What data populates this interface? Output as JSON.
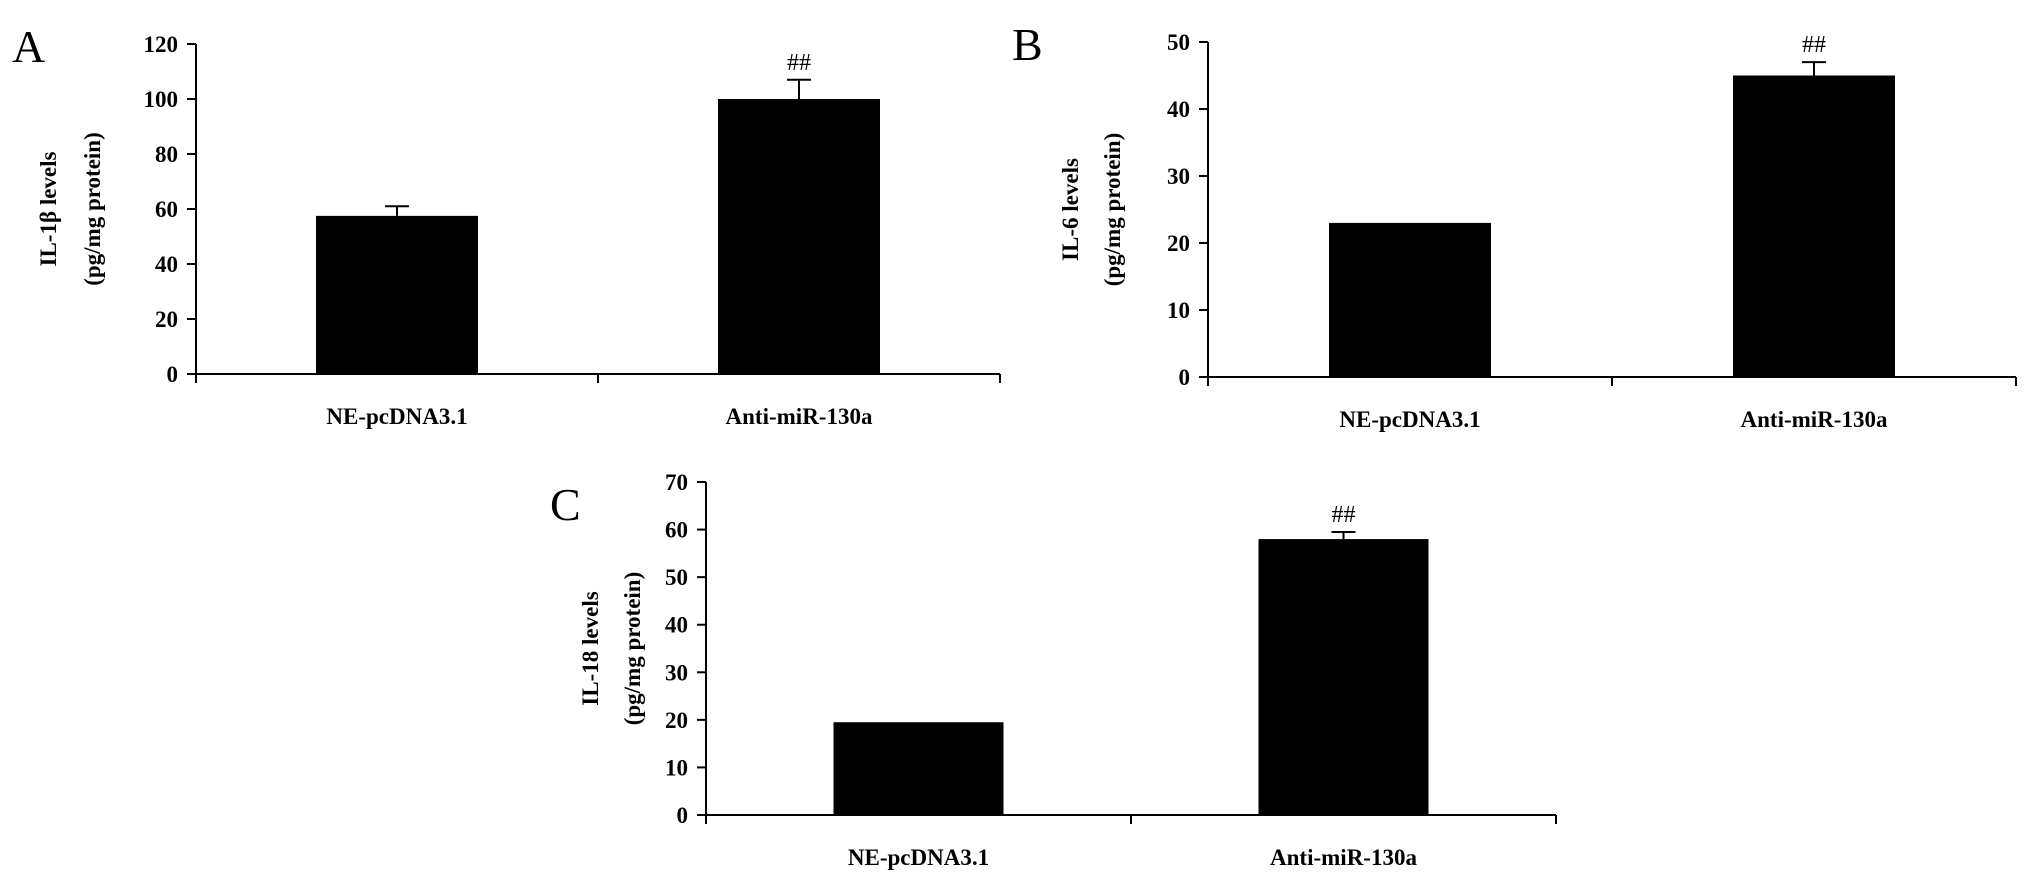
{
  "chart_data": [
    {
      "type": "bar",
      "panel": "A",
      "categories": [
        "NE-pcDNA3.1",
        "Anti-miR-130a"
      ],
      "values": [
        57.5,
        100
      ],
      "errors": [
        3.5,
        7
      ],
      "annotations": [
        "",
        "##"
      ],
      "ylabel": [
        "IL-1β levels",
        "(pg/mg protein)"
      ],
      "ylim": [
        0,
        120
      ],
      "yticks": [
        0,
        20,
        40,
        60,
        80,
        100,
        120
      ]
    },
    {
      "type": "bar",
      "panel": "B",
      "categories": [
        "NE-pcDNA3.1",
        "Anti-miR-130a"
      ],
      "values": [
        23,
        45
      ],
      "errors": [
        0,
        2
      ],
      "annotations": [
        "",
        "##"
      ],
      "ylabel": [
        "IL-6 levels",
        "(pg/mg protein)"
      ],
      "ylim": [
        0,
        50
      ],
      "yticks": [
        0,
        10,
        20,
        30,
        40,
        50
      ]
    },
    {
      "type": "bar",
      "panel": "C",
      "categories": [
        "NE-pcDNA3.1",
        "Anti-miR-130a"
      ],
      "values": [
        19.5,
        58
      ],
      "errors": [
        0,
        1.5
      ],
      "annotations": [
        "",
        "##"
      ],
      "ylabel": [
        "IL-18 levels",
        "(pg/mg protein)"
      ],
      "ylim": [
        0,
        70
      ],
      "yticks": [
        0,
        10,
        20,
        30,
        40,
        50,
        60,
        70
      ]
    }
  ]
}
